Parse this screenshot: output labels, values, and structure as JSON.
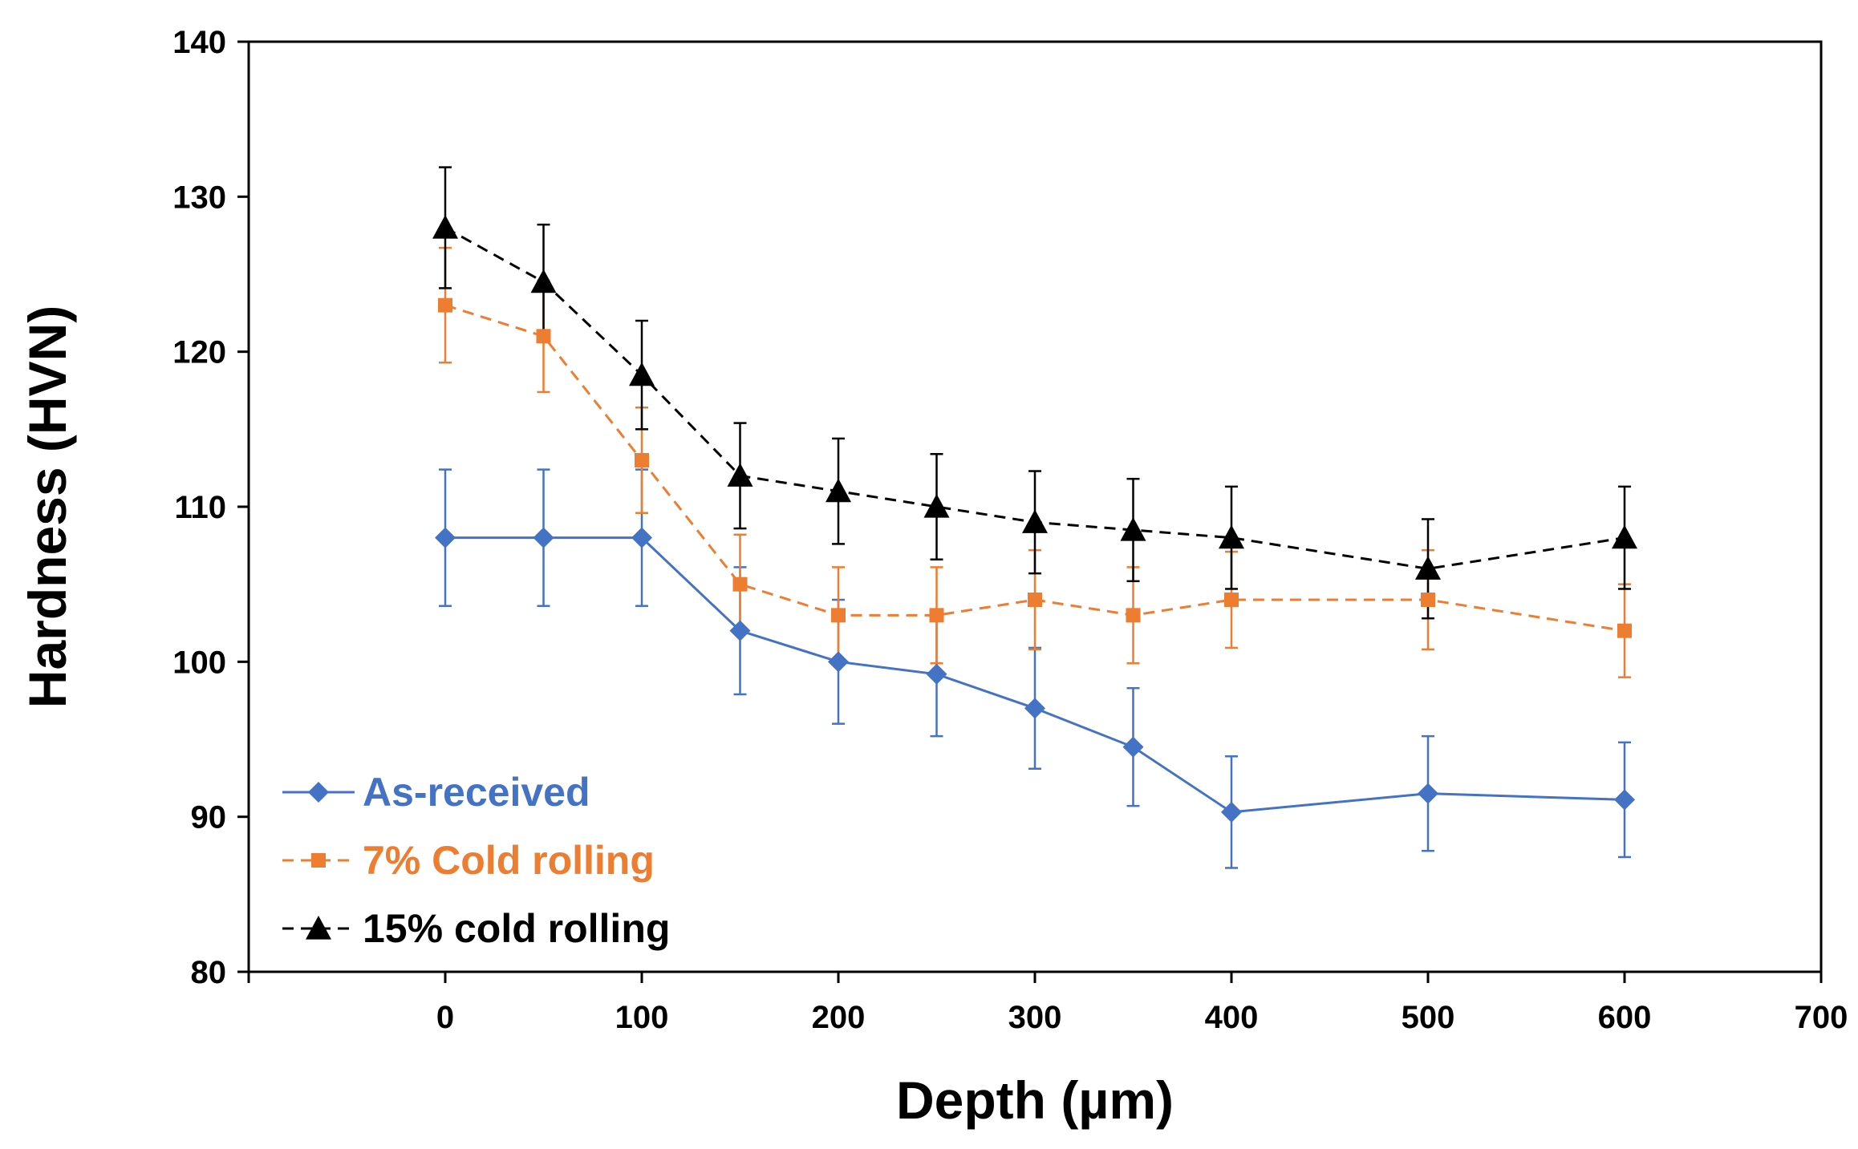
{
  "chart_data": {
    "type": "line",
    "title": "",
    "xlabel": "Depth (µm)",
    "ylabel": "Hardness (HVN)",
    "xlim": [
      -100,
      700
    ],
    "ylim": [
      80,
      140
    ],
    "xticks": [
      0,
      100,
      200,
      300,
      400,
      500,
      600,
      700
    ],
    "yticks": [
      80,
      90,
      100,
      110,
      120,
      130,
      140
    ],
    "grid": false,
    "legend_position": "bottom-left",
    "x": [
      0,
      50,
      100,
      150,
      200,
      250,
      300,
      350,
      400,
      500,
      600
    ],
    "series": [
      {
        "name": "As-received",
        "color": "#4472C4",
        "marker": "diamond",
        "line_style": "solid",
        "values": [
          108,
          108,
          108,
          102,
          100,
          99.2,
          97,
          94.5,
          90.3,
          91.5,
          91.1
        ],
        "errors": [
          4.4,
          4.4,
          4.4,
          4.1,
          4,
          4,
          3.9,
          3.8,
          3.6,
          3.7,
          3.7
        ]
      },
      {
        "name": "7% Cold rolling",
        "color": "#ED7D31",
        "marker": "square",
        "line_style": "dashed",
        "values": [
          123,
          121,
          113,
          105,
          103,
          103,
          104,
          103,
          104,
          104,
          102
        ],
        "errors": [
          3.7,
          3.6,
          3.4,
          3.2,
          3.1,
          3.1,
          3.2,
          3.1,
          3.1,
          3.2,
          3
        ]
      },
      {
        "name": "15% cold rolling",
        "color": "#000000",
        "marker": "triangle",
        "line_style": "dashed",
        "values": [
          128,
          124.5,
          118.5,
          112,
          111,
          110,
          109,
          108.5,
          108,
          106,
          108
        ],
        "errors": [
          3.9,
          3.7,
          3.5,
          3.4,
          3.4,
          3.4,
          3.3,
          3.3,
          3.3,
          3.2,
          3.3
        ]
      }
    ]
  }
}
